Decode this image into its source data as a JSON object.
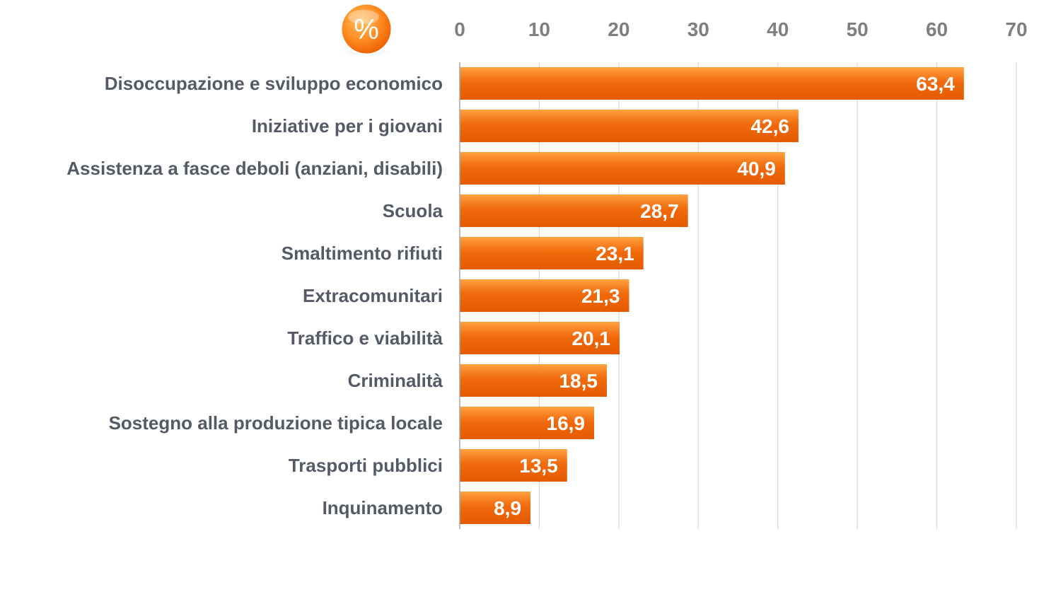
{
  "chart_data": {
    "type": "bar",
    "orientation": "horizontal",
    "badge_symbol": "%",
    "badge_icon": "percent-badge-icon",
    "categories": [
      "Disoccupazione e sviluppo economico",
      "Iniziative per i giovani",
      "Assistenza a fasce deboli (anziani, disabili)",
      "Scuola",
      "Smaltimento rifiuti",
      "Extracomunitari",
      "Traffico e viabilità",
      "Criminalità",
      "Sostegno alla produzione tipica locale",
      "Trasporti pubblici",
      "Inquinamento"
    ],
    "values": [
      63.4,
      42.6,
      40.9,
      28.7,
      23.1,
      21.3,
      20.1,
      18.5,
      16.9,
      13.5,
      8.9
    ],
    "value_labels": [
      "63,4",
      "42,6",
      "40,9",
      "28,7",
      "23,1",
      "21,3",
      "20,1",
      "18,5",
      "16,9",
      "13,5",
      "8,9"
    ],
    "xlim": [
      0,
      70
    ],
    "xticks": [
      0,
      10,
      20,
      30,
      40,
      50,
      60,
      70
    ],
    "x_axis_position": "top",
    "grid": true,
    "bar_color": "#f07010",
    "bar_color_light": "#ffa040",
    "bar_color_dark": "#e05a00",
    "legend": "none"
  }
}
